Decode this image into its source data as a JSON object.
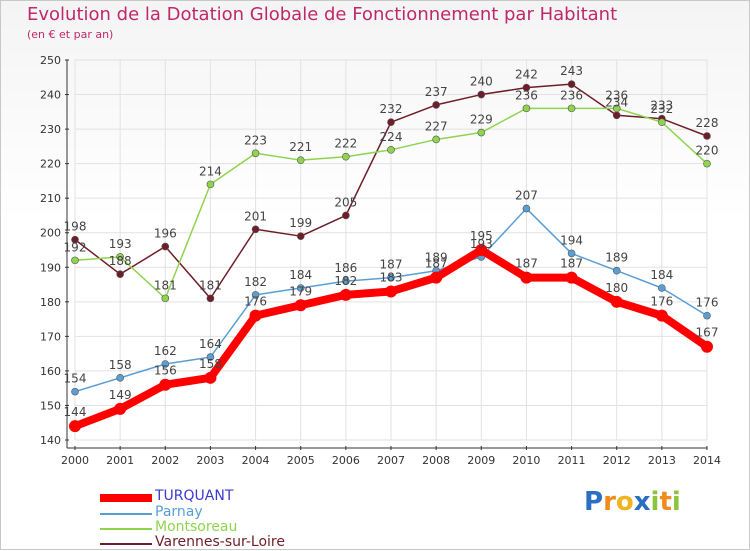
{
  "chart_data": {
    "type": "line",
    "title": "Evolution de la Dotation Globale de Fonctionnement par Habitant",
    "subtitle": "(en € et par an)",
    "categories": [
      "2000",
      "2001",
      "2002",
      "2003",
      "2004",
      "2005",
      "2006",
      "2007",
      "2008",
      "2009",
      "2010",
      "2011",
      "2012",
      "2013",
      "2014"
    ],
    "ylim": [
      140,
      250
    ],
    "yticks": [
      140,
      150,
      160,
      170,
      180,
      190,
      200,
      210,
      220,
      230,
      240,
      250
    ],
    "grid": true,
    "legend_position": "bottom-left",
    "series": [
      {
        "name": "TURQUANT",
        "color": "#ff0000",
        "values": [
          144,
          149,
          156,
          158,
          176,
          179,
          182,
          183,
          187,
          195,
          187,
          187,
          180,
          176,
          167
        ]
      },
      {
        "name": "Parnay",
        "color": "#5a9fd4",
        "values": [
          154,
          158,
          162,
          164,
          182,
          184,
          186,
          187,
          189,
          193,
          207,
          194,
          189,
          184,
          176
        ]
      },
      {
        "name": "Montsoreau",
        "color": "#8fd44f",
        "values": [
          192,
          193,
          181,
          214,
          223,
          221,
          222,
          224,
          227,
          229,
          236,
          236,
          236,
          232,
          220
        ]
      },
      {
        "name": "Varennes-sur-Loire",
        "color": "#6e1e28",
        "values": [
          198,
          188,
          196,
          181,
          201,
          199,
          205,
          232,
          237,
          240,
          242,
          243,
          234,
          233,
          228
        ]
      }
    ]
  },
  "logo": {
    "text": "Proxiti",
    "letters": [
      "P",
      "r",
      "o",
      "x",
      "i",
      "t",
      "i"
    ],
    "colors": [
      "#2a6fc4",
      "#f08c1e",
      "#f0b41e",
      "#2a6fc4",
      "#8bc43f",
      "#f08c1e",
      "#8bc43f"
    ]
  }
}
